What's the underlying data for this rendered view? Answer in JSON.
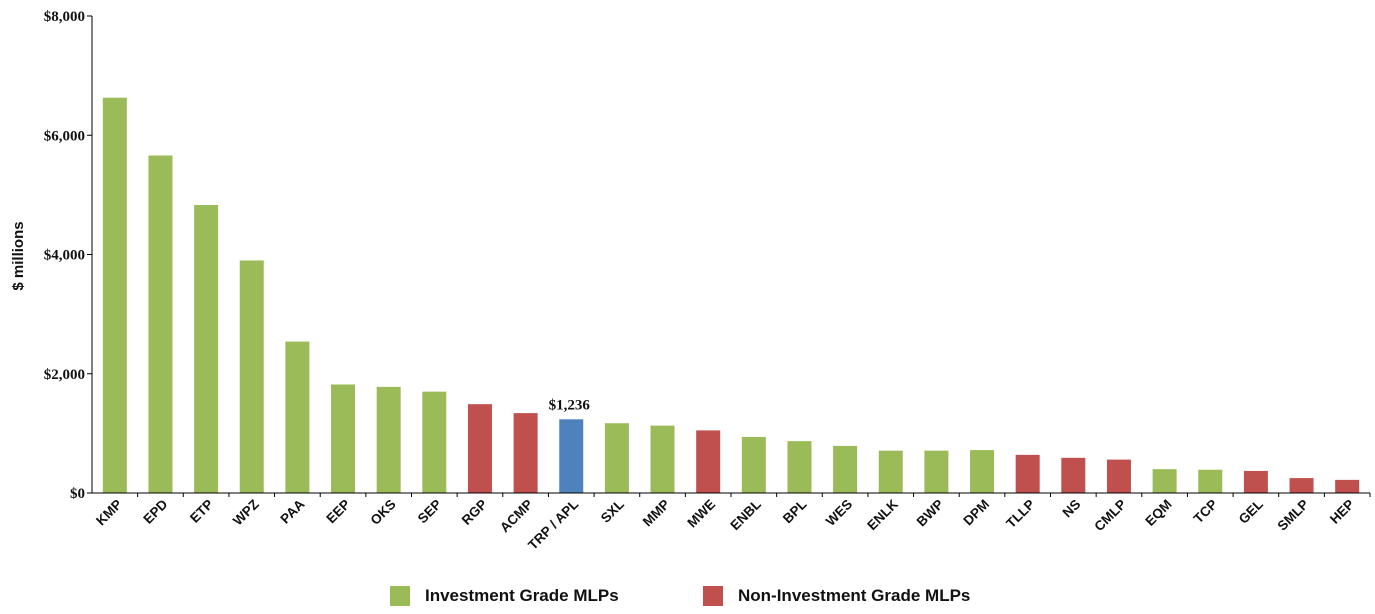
{
  "chart_data": {
    "type": "bar",
    "title": "",
    "xlabel": "",
    "ylabel": "$ millions",
    "ylim": [
      0,
      8000
    ],
    "yticks": [
      "$0",
      "$2,000",
      "$4,000",
      "$6,000",
      "$8,000"
    ],
    "ytick_values": [
      0,
      2000,
      4000,
      6000,
      8000
    ],
    "grid": false,
    "categories": [
      "KMP",
      "EPD",
      "ETP",
      "WPZ",
      "PAA",
      "EEP",
      "OKS",
      "SEP",
      "RGP",
      "ACMP",
      "TRP / APL",
      "SXL",
      "MMP",
      "MWE",
      "ENBL",
      "BPL",
      "WES",
      "ENLK",
      "BWP",
      "DPM",
      "TLLP",
      "NS",
      "CMLP",
      "EQM",
      "TCP",
      "GEL",
      "SMLP",
      "HEP"
    ],
    "values": [
      6630,
      5660,
      4830,
      3900,
      2540,
      1820,
      1780,
      1700,
      1490,
      1340,
      1236,
      1170,
      1130,
      1050,
      940,
      870,
      790,
      710,
      710,
      720,
      640,
      590,
      560,
      400,
      390,
      370,
      250,
      220
    ],
    "bar_groups": [
      "ig",
      "ig",
      "ig",
      "ig",
      "ig",
      "ig",
      "ig",
      "ig",
      "nig",
      "nig",
      "highlight",
      "ig",
      "ig",
      "nig",
      "ig",
      "ig",
      "ig",
      "ig",
      "ig",
      "ig",
      "nig",
      "nig",
      "nig",
      "ig",
      "ig",
      "nig",
      "nig",
      "nig"
    ],
    "annotations": [
      {
        "category": "TRP / APL",
        "text": "$1,236"
      }
    ],
    "legend": {
      "position": "bottom",
      "items": [
        {
          "label": "Investment Grade MLPs",
          "group": "ig"
        },
        {
          "label": "Non-Investment Grade MLPs",
          "group": "nig"
        }
      ]
    },
    "colors": {
      "ig": "#9BBB59",
      "nig": "#C0504D",
      "highlight": "#4F81BD",
      "axis": "#000000"
    }
  }
}
